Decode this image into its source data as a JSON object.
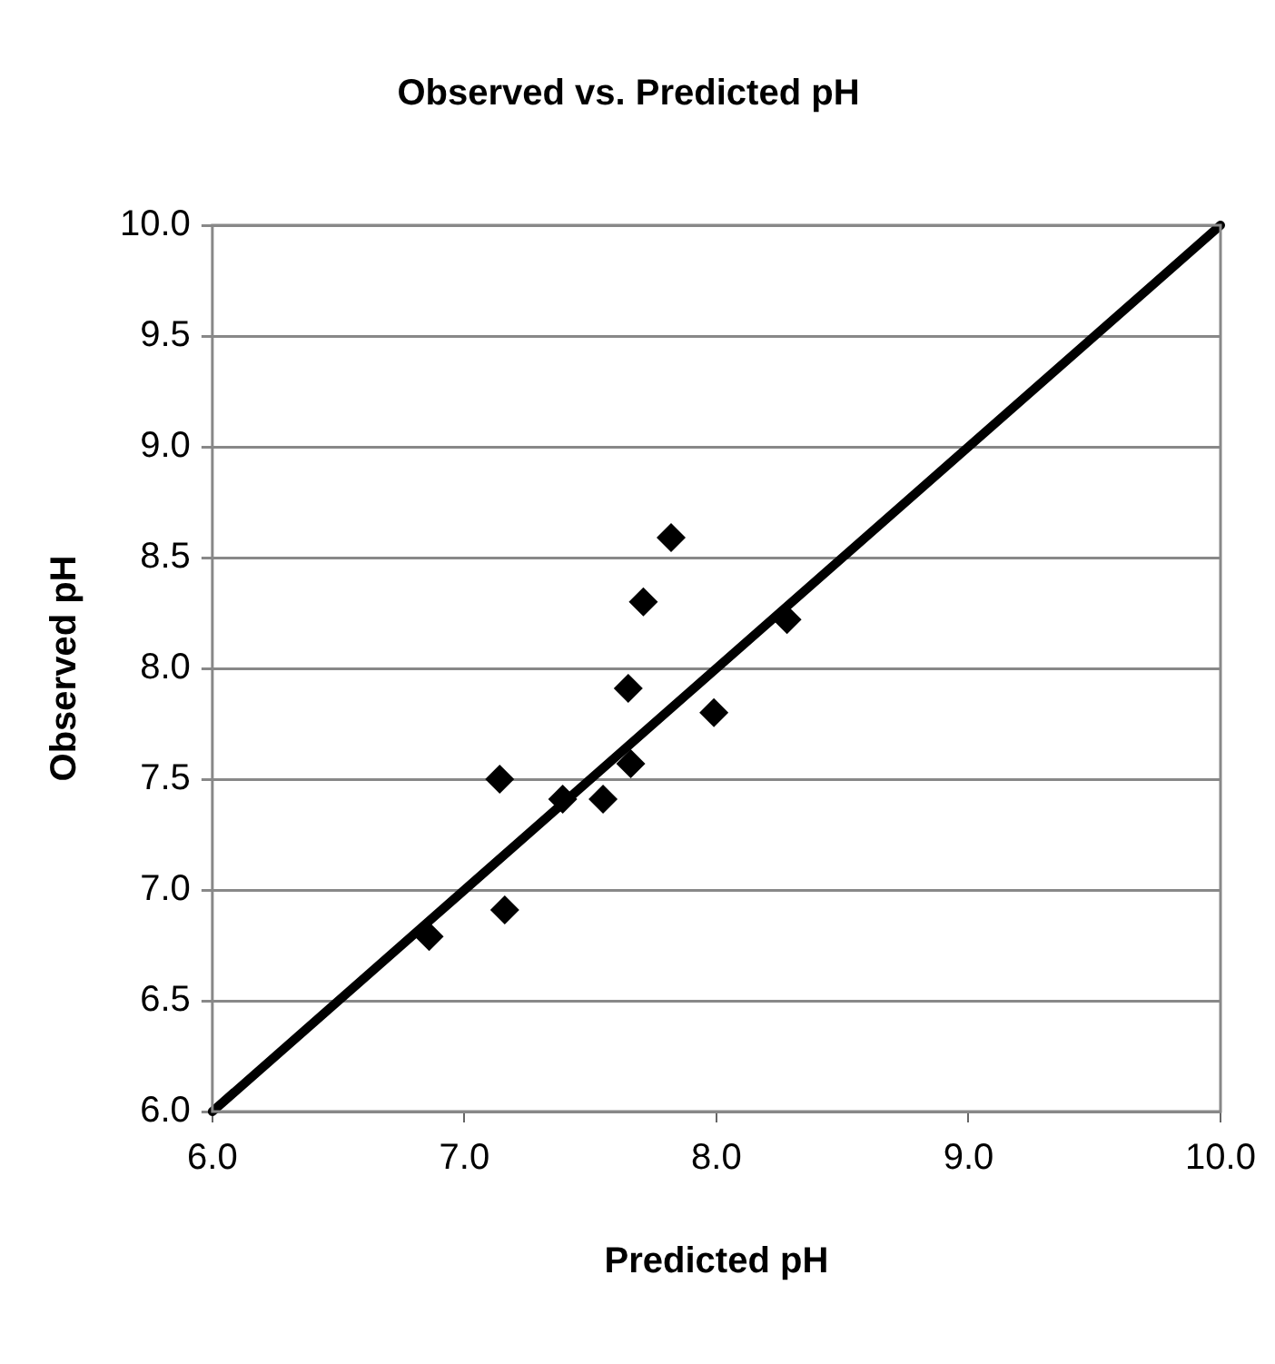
{
  "chart_data": {
    "type": "scatter",
    "title": "Observed vs. Predicted pH",
    "xlabel": "Predicted pH",
    "ylabel": "Observed pH",
    "xlim": [
      6.0,
      10.0
    ],
    "xticks": [
      {
        "value": 6,
        "label": "6.0"
      },
      {
        "value": 7,
        "label": "7.0"
      },
      {
        "value": 8,
        "label": "8.0"
      },
      {
        "value": 9,
        "label": "9.0"
      },
      {
        "value": 10,
        "label": "10.0"
      }
    ],
    "ylim": [
      6.0,
      10.0
    ],
    "yticks": [
      {
        "value": 6,
        "label": "6.0"
      },
      {
        "value": 6.5,
        "label": "6.5"
      },
      {
        "value": 7,
        "label": "7.0"
      },
      {
        "value": 7.5,
        "label": "7.5"
      },
      {
        "value": 8,
        "label": "8.0"
      },
      {
        "value": 8.5,
        "label": "8.5"
      },
      {
        "value": 9,
        "label": "9.0"
      },
      {
        "value": 9.5,
        "label": "9.5"
      },
      {
        "value": 10,
        "label": "10.0"
      }
    ],
    "grid": "y",
    "legend": false,
    "marker": "diamond",
    "series": [
      {
        "type": "scatter",
        "color": "#000000",
        "x": [
          7.82,
          7.71,
          8.28,
          7.65,
          7.99,
          7.14,
          7.66,
          7.39,
          7.55,
          7.16,
          6.86
        ],
        "values": [
          8.59,
          8.3,
          8.22,
          7.91,
          7.8,
          7.5,
          7.57,
          7.41,
          7.41,
          6.91,
          6.79
        ]
      },
      {
        "type": "line",
        "color": "#000000",
        "marker": "none",
        "x": [
          6.0,
          10.0
        ],
        "values": [
          6.0,
          10.0
        ]
      }
    ]
  }
}
